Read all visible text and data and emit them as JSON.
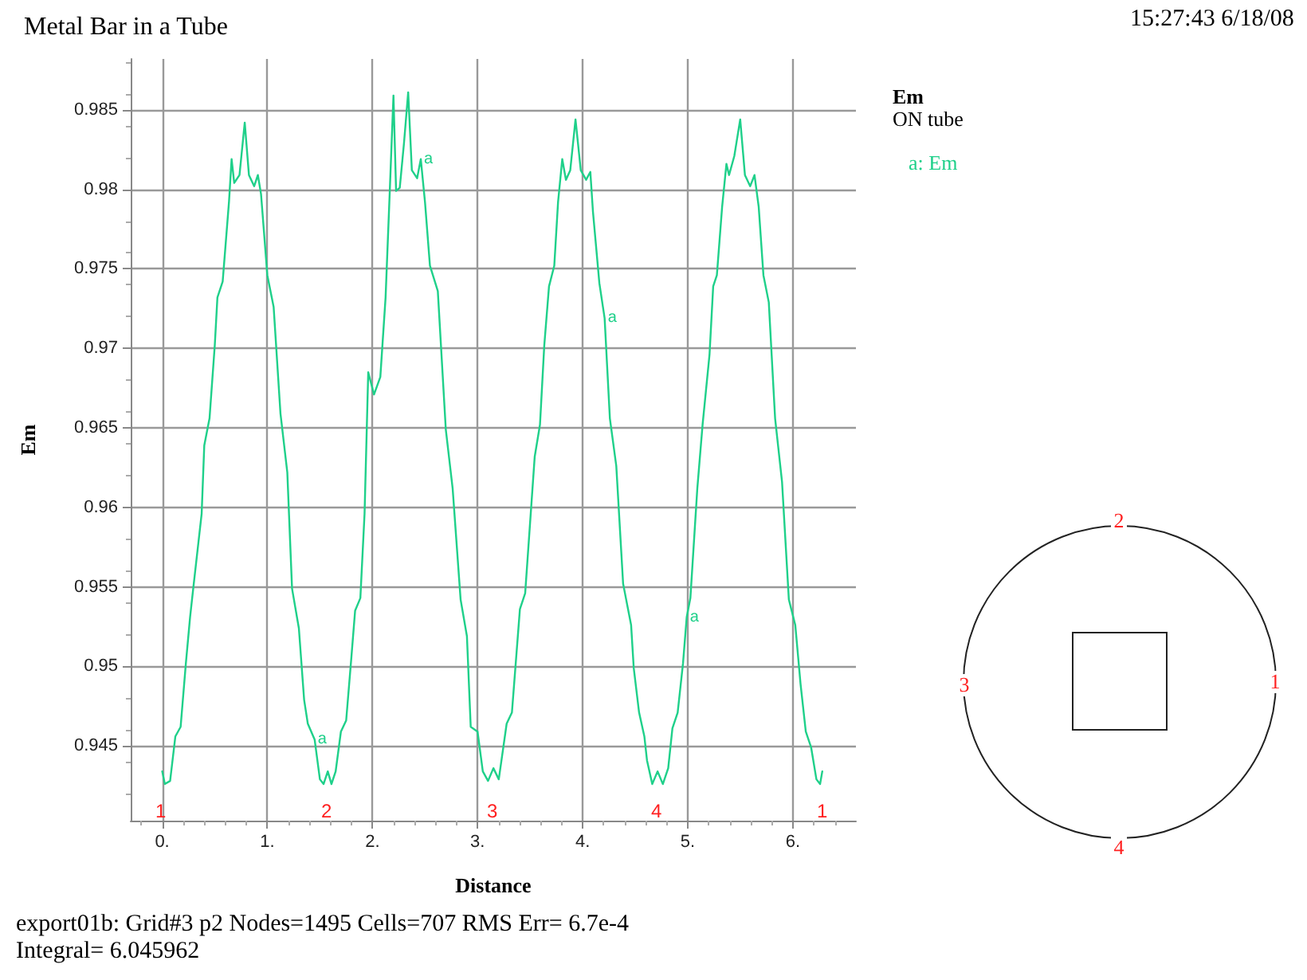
{
  "chart_data": {
    "type": "line",
    "title": "Metal Bar in a Tube",
    "subtitle": "ON tube",
    "legend_title": "Em",
    "xlabel": "Distance",
    "ylabel": "Em",
    "xlim": [
      -0.3,
      6.6
    ],
    "xticks": [
      {
        "value": 0,
        "label": "0."
      },
      {
        "value": 1,
        "label": "1."
      },
      {
        "value": 2,
        "label": "2."
      },
      {
        "value": 3,
        "label": "3."
      },
      {
        "value": 4,
        "label": "4."
      },
      {
        "value": 5,
        "label": "5."
      },
      {
        "value": 6,
        "label": "6."
      }
    ],
    "ylim": [
      0.9403,
      0.9882
    ],
    "yticks": [
      0.945,
      0.95,
      0.955,
      0.96,
      0.965,
      0.97,
      0.975,
      0.98,
      0.985
    ],
    "grid": true,
    "legend": "top right",
    "marker": "none",
    "line_style": "solid",
    "series": [
      {
        "name": "a: Em",
        "color": "#1fd08a",
        "x": [
          0,
          0.025,
          0.075,
          0.125,
          0.175,
          0.225,
          0.265,
          0.3,
          0.375,
          0.4,
          0.45,
          0.5,
          0.525,
          0.575,
          0.635,
          0.66,
          0.685,
          0.735,
          0.785,
          0.825,
          0.875,
          0.91,
          0.94,
          1.0,
          1.06,
          1.125,
          1.19,
          1.235,
          1.3,
          1.35,
          1.385,
          1.45,
          1.5,
          1.535,
          1.575,
          1.61,
          1.65,
          1.7,
          1.75,
          1.8,
          1.835,
          1.885,
          1.925,
          1.96,
          2.015,
          2.075,
          2.125,
          2.165,
          2.2,
          2.225,
          2.26,
          2.3,
          2.34,
          2.375,
          2.425,
          2.46,
          2.5,
          2.547,
          2.622,
          2.698,
          2.763,
          2.839,
          2.899,
          2.935,
          3.0,
          3.05,
          3.1,
          3.151,
          3.202,
          3.277,
          3.327,
          3.403,
          3.453,
          3.544,
          3.594,
          3.635,
          3.68,
          3.73,
          3.766,
          3.806,
          3.841,
          3.882,
          3.932,
          3.982,
          4.033,
          4.073,
          4.098,
          4.159,
          4.209,
          4.259,
          4.32,
          4.385,
          4.461,
          4.486,
          4.537,
          4.587,
          4.612,
          4.662,
          4.713,
          4.763,
          4.814,
          4.854,
          4.904,
          4.955,
          4.99,
          5.025,
          5.091,
          5.141,
          5.207,
          5.242,
          5.277,
          5.327,
          5.368,
          5.393,
          5.443,
          5.499,
          5.544,
          5.594,
          5.635,
          5.675,
          5.72,
          5.771,
          5.831,
          5.897,
          5.962,
          6.023,
          6.073,
          6.123,
          6.174,
          6.224,
          6.259,
          6.28
        ],
        "values": [
          0.9434,
          0.9426,
          0.9428,
          0.9456,
          0.9462,
          0.9502,
          0.9531,
          0.9552,
          0.9596,
          0.9639,
          0.9656,
          0.9702,
          0.9732,
          0.9742,
          0.9792,
          0.9819,
          0.9804,
          0.9809,
          0.9842,
          0.9809,
          0.9802,
          0.9809,
          0.9797,
          0.9746,
          0.9726,
          0.9659,
          0.9622,
          0.9549,
          0.9524,
          0.9479,
          0.9464,
          0.9454,
          0.9429,
          0.9426,
          0.9434,
          0.9426,
          0.9434,
          0.9459,
          0.9466,
          0.9506,
          0.9535,
          0.9543,
          0.9596,
          0.9685,
          0.9671,
          0.9682,
          0.9732,
          0.9799,
          0.9859,
          0.9799,
          0.9801,
          0.9829,
          0.9861,
          0.9812,
          0.9807,
          0.9819,
          0.9792,
          0.9752,
          0.9736,
          0.9649,
          0.9612,
          0.9542,
          0.9519,
          0.9462,
          0.9459,
          0.9434,
          0.9428,
          0.9436,
          0.9429,
          0.9464,
          0.9471,
          0.9536,
          0.9546,
          0.9632,
          0.9652,
          0.9702,
          0.9739,
          0.9752,
          0.9792,
          0.9819,
          0.9806,
          0.9812,
          0.9844,
          0.9812,
          0.9806,
          0.9811,
          0.9786,
          0.9741,
          0.9719,
          0.9656,
          0.9626,
          0.9552,
          0.9526,
          0.9499,
          0.9471,
          0.9456,
          0.9441,
          0.9426,
          0.9434,
          0.9426,
          0.9436,
          0.9461,
          0.9471,
          0.9502,
          0.9531,
          0.9543,
          0.9612,
          0.9652,
          0.9696,
          0.9739,
          0.9746,
          0.9789,
          0.9816,
          0.9809,
          0.9821,
          0.9844,
          0.9809,
          0.9802,
          0.9809,
          0.9789,
          0.9746,
          0.9729,
          0.9656,
          0.9616,
          0.9542,
          0.9526,
          0.9489,
          0.9459,
          0.9449,
          0.9429,
          0.9426,
          0.9434
        ],
        "value_labels": [
          null,
          null,
          null,
          null,
          null,
          null,
          null,
          null,
          null,
          null,
          null,
          null,
          null,
          null,
          null,
          null,
          null,
          null,
          null,
          null,
          null,
          null,
          null,
          null,
          null,
          null,
          null,
          null,
          null,
          null,
          null,
          "a",
          null,
          null,
          null,
          null,
          null,
          null,
          null,
          null,
          null,
          null,
          null,
          null,
          null,
          null,
          null,
          null,
          null,
          null,
          null,
          null,
          null,
          null,
          null,
          "a",
          null,
          null,
          null,
          null,
          null,
          null,
          null,
          null,
          null,
          null,
          null,
          null,
          null,
          null,
          null,
          null,
          null,
          null,
          null,
          null,
          null,
          null,
          null,
          null,
          null,
          null,
          null,
          null,
          null,
          null,
          null,
          null,
          "a",
          null,
          null,
          null,
          null,
          null,
          null,
          null,
          null,
          null,
          null,
          null,
          null,
          null,
          null,
          null,
          "a",
          null,
          null,
          null,
          null,
          null,
          null,
          null,
          null,
          null,
          null,
          null,
          null,
          null,
          null,
          null,
          null,
          null,
          null,
          null,
          null,
          null,
          null,
          null,
          null,
          null,
          null,
          null
        ]
      }
    ],
    "annotations": [
      "15:27:43 6/18/08",
      "export01b:  Grid#3  p2  Nodes=1495 Cells=707 RMS Err= 6.7e-4",
      "Integral=  6.045962",
      "1",
      "2",
      "3",
      "4",
      "1",
      "2",
      "3",
      "4",
      "1"
    ]
  }
}
